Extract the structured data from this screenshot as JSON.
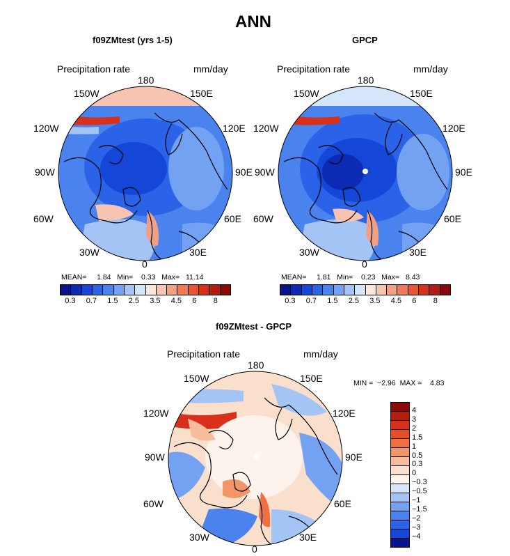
{
  "main_title": "ANN",
  "panels": [
    {
      "id": "model",
      "title": "f09ZMtest (yrs 1-5)",
      "var_label": "Precipitation rate",
      "units": "mm/day",
      "lon_labels": {
        "n": "180",
        "nw": "150W",
        "ne": "150E",
        "wnw": "120W",
        "ene": "120E",
        "w": "90W",
        "e": "90E",
        "wsw": "60W",
        "ese": "60E",
        "sw": "30W",
        "se": "30E",
        "s": "0"
      },
      "stats": {
        "mean_label": "MEAN=",
        "mean": "1.84",
        "min_label": "Min=",
        "min": "0.33",
        "max_label": "Max=",
        "max": "11.14"
      },
      "colorbar_ticks": [
        "0.3",
        "0.7",
        "1.5",
        "2.5",
        "3.5",
        "4.5",
        "6",
        "8"
      ]
    },
    {
      "id": "obs",
      "title": "GPCP",
      "var_label": "Precipitation rate",
      "units": "mm/day",
      "lon_labels": {
        "n": "180",
        "nw": "150W",
        "ne": "150E",
        "wnw": "120W",
        "ene": "120E",
        "w": "90W",
        "e": "90E",
        "wsw": "60W",
        "ese": "60E",
        "sw": "30W",
        "se": "30E",
        "s": "0"
      },
      "stats": {
        "mean_label": "MEAN=",
        "mean": "1.81",
        "min_label": "Min=",
        "min": "0.23",
        "max_label": "Max=",
        "max": "8.43"
      },
      "colorbar_ticks": [
        "0.3",
        "0.7",
        "1.5",
        "2.5",
        "3.5",
        "4.5",
        "6",
        "8"
      ]
    },
    {
      "id": "diff",
      "title": "f09ZMtest - GPCP",
      "var_label": "Precipitation rate",
      "units": "mm/day",
      "lon_labels": {
        "n": "180",
        "nw": "150W",
        "ne": "150E",
        "wnw": "120W",
        "ene": "120E",
        "w": "90W",
        "e": "90E",
        "wsw": "60W",
        "ese": "60E",
        "sw": "30W",
        "se": "30E",
        "s": "0"
      },
      "stats": {
        "min_label": "MIN =",
        "min": "−2.96",
        "max_label": "MAX =",
        "max": "4.83"
      },
      "colorbar_ticks": [
        "4",
        "3",
        "2",
        "1.5",
        "1",
        "0.5",
        "0.3",
        "0",
        "−0.3",
        "−0.5",
        "−1",
        "−1.5",
        "−2",
        "−3",
        "−4"
      ]
    }
  ],
  "colors": {
    "abs_scale": [
      "#08148c",
      "#0c2ab4",
      "#1446d8",
      "#2a63e8",
      "#4a82ee",
      "#74a2f2",
      "#a4c4f6",
      "#d6e6fa",
      "#fbe6dc",
      "#f6c4b0",
      "#f2a084",
      "#ee7a56",
      "#e85430",
      "#d8301a",
      "#b41c10",
      "#8a0a06"
    ],
    "diff_scale": [
      "#8a0a06",
      "#b41c10",
      "#d8301a",
      "#e84c24",
      "#ee7040",
      "#f2966a",
      "#f6bc9c",
      "#fae0cc",
      "#fbf3ec",
      "#d6e6fa",
      "#a4c4f6",
      "#74a2f2",
      "#4a82ee",
      "#2a63e8",
      "#1446d8",
      "#08148c"
    ],
    "land_outline": "#000000"
  }
}
